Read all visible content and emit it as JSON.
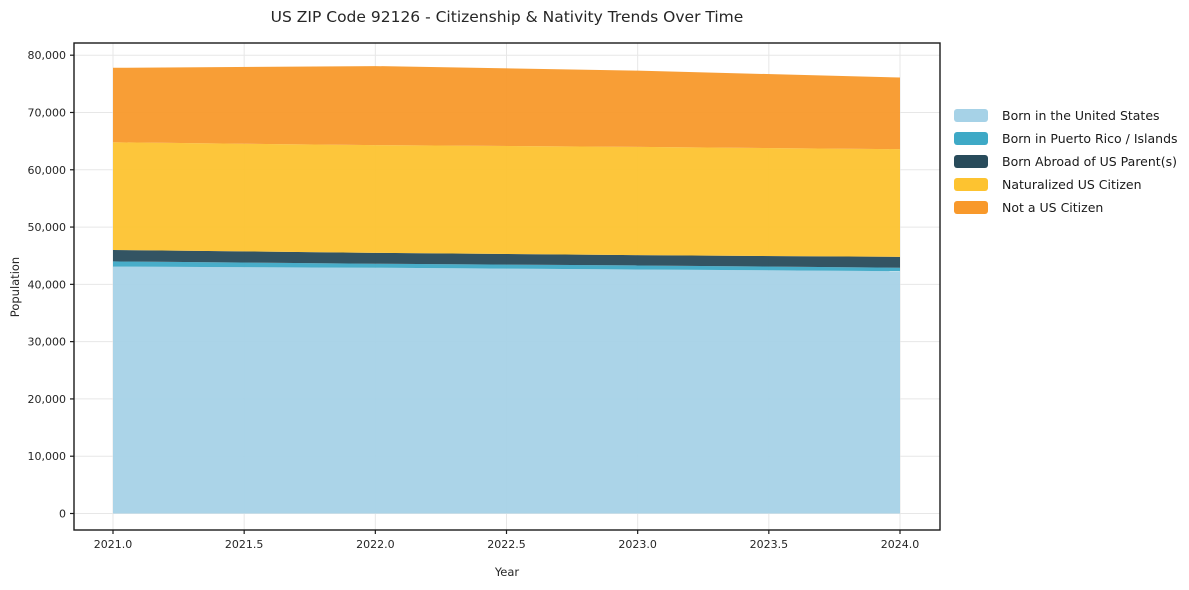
{
  "chart_data": {
    "type": "area",
    "stacked": true,
    "title": "US ZIP Code 92126 - Citizenship & Nativity Trends Over Time",
    "xlabel": "Year",
    "ylabel": "Population",
    "x": [
      2021,
      2022,
      2023,
      2024
    ],
    "series": [
      {
        "name": "Born in the United States",
        "color": "#a6d2e7",
        "values": [
          43100,
          42900,
          42600,
          42300
        ]
      },
      {
        "name": "Born in Puerto Rico / Islands",
        "color": "#3ea9c6",
        "values": [
          900,
          700,
          700,
          600
        ]
      },
      {
        "name": "Born Abroad of US Parent(s)",
        "color": "#284b5b",
        "values": [
          2000,
          1900,
          1800,
          1900
        ]
      },
      {
        "name": "Naturalized US Citizen",
        "color": "#fdc330",
        "values": [
          18800,
          18800,
          18900,
          18800
        ]
      },
      {
        "name": "Not a US Citizen",
        "color": "#f8992b",
        "values": [
          13000,
          13800,
          13300,
          12500
        ]
      }
    ],
    "totals": [
      77800,
      78100,
      77300,
      76100
    ],
    "xlim": [
      2021,
      2024
    ],
    "ylim": [
      0,
      80000
    ],
    "xticks": {
      "values": [
        2021,
        2021.5,
        2022,
        2022.5,
        2023,
        2023.5,
        2024
      ],
      "labels": [
        "2021.0",
        "2021.5",
        "2022.0",
        "2022.5",
        "2023.0",
        "2023.5",
        "2024.0"
      ]
    },
    "yticks": {
      "values": [
        0,
        10000,
        20000,
        30000,
        40000,
        50000,
        60000,
        70000,
        80000
      ],
      "labels": [
        "0",
        "10,000",
        "20,000",
        "30,000",
        "40,000",
        "50,000",
        "60,000",
        "70,000",
        "80,000"
      ]
    },
    "grid": true,
    "legend_position": "right",
    "colors": {
      "grid": "#e7e7e7",
      "frame": "#1a1a1a",
      "text": "#262626",
      "background": "#ffffff"
    }
  }
}
